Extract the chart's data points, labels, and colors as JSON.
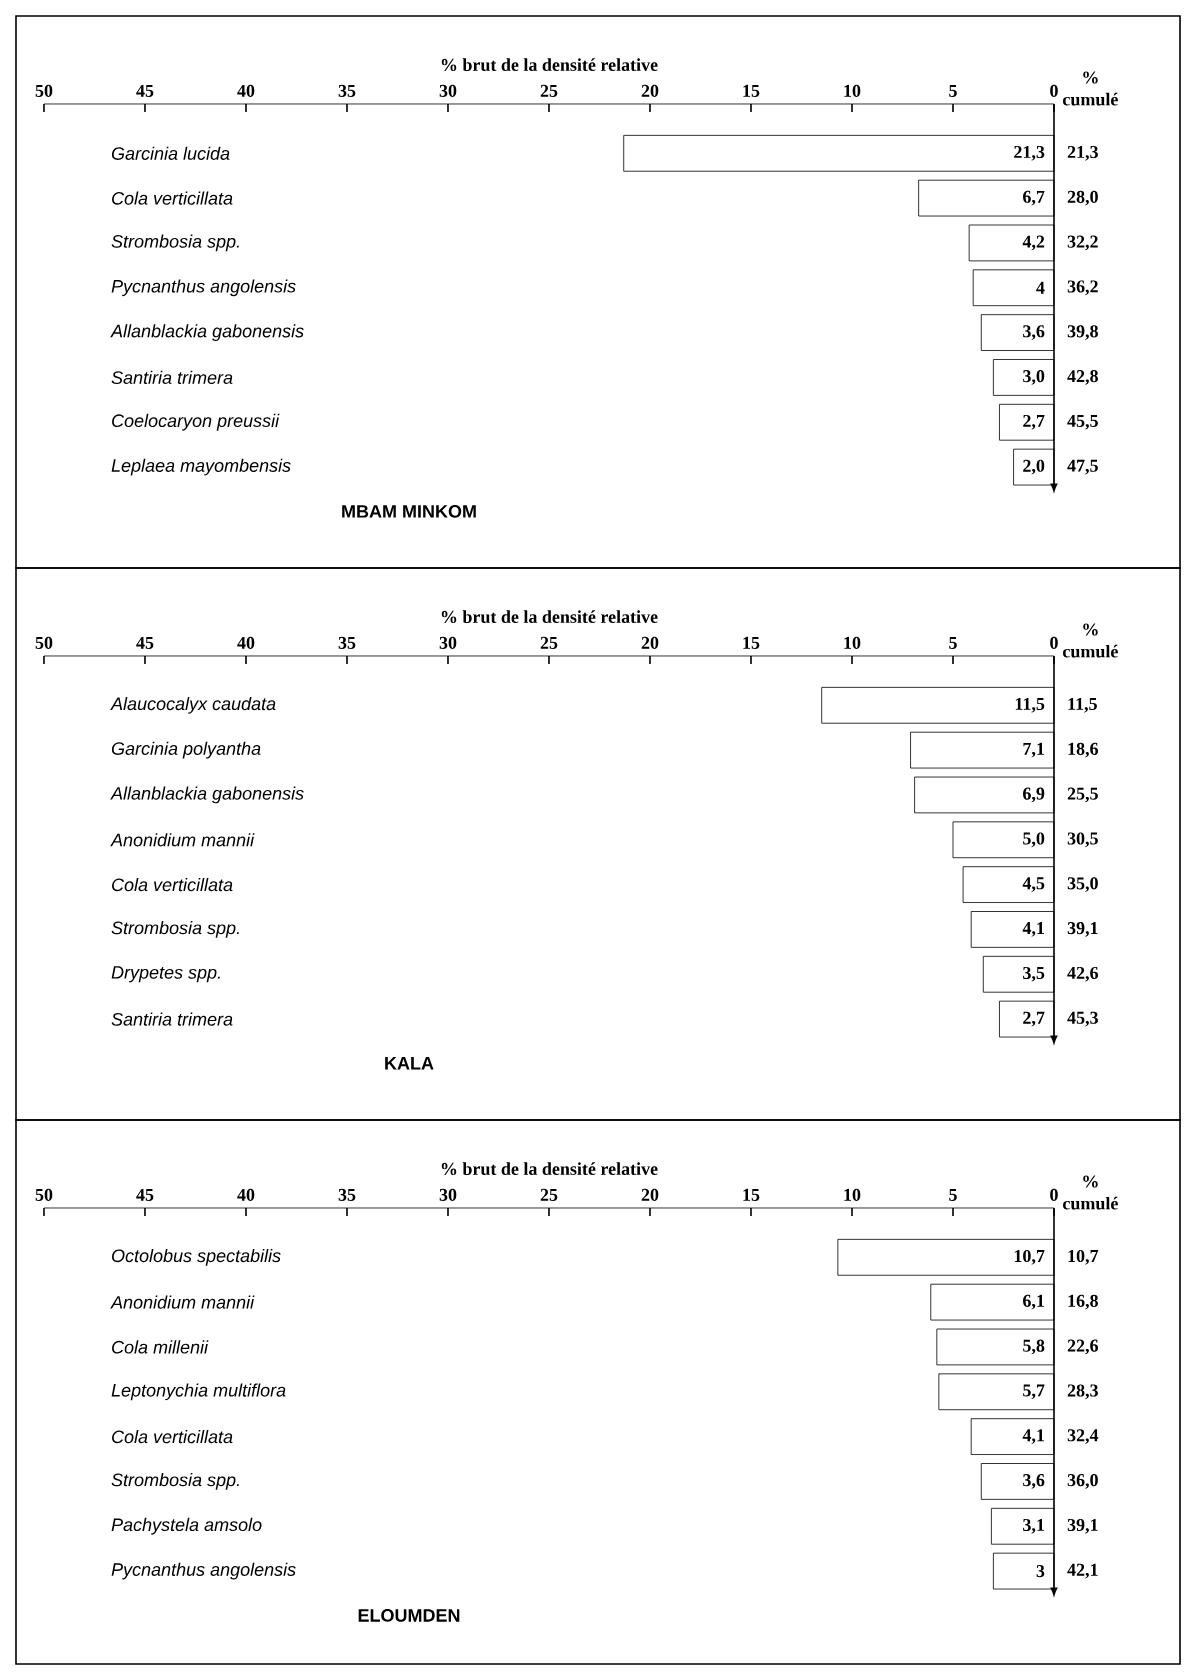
{
  "chart_data": [
    {
      "type": "bar",
      "orientation": "horizontal",
      "title": "MBAM MINKOM",
      "xlabel": "% brut de la densité relative",
      "y2label": "% cumulé",
      "categories": [
        "Garcinia lucida",
        "Cola verticillata",
        "Strombosia spp.",
        "Pycnanthus angolensis",
        "Allanblackia gabonensis",
        "Santiria trimera",
        "Coelocaryon preussii",
        "Leplaea mayombensis"
      ],
      "values": [
        21.3,
        6.7,
        4.2,
        4,
        3.6,
        3.0,
        2.7,
        2.0
      ],
      "value_labels": [
        "21,3",
        "6,7",
        "4,2",
        "4",
        "3,6",
        "3,0",
        "2,7",
        "2,0"
      ],
      "annotations": [
        "21,3",
        "28,0",
        "32,2",
        "36,2",
        "39,8",
        "42,8",
        "45,5",
        "47,5"
      ],
      "color": "#ffffff",
      "xlim": [
        50,
        0
      ],
      "xticks": [
        50,
        45,
        40,
        35,
        30,
        25,
        20,
        15,
        10,
        5,
        0
      ]
    },
    {
      "type": "bar",
      "orientation": "horizontal",
      "title": "KALA",
      "xlabel": "% brut de la densité relative",
      "y2label": "% cumulé",
      "categories": [
        "Alaucocalyx caudata",
        "Garcinia polyantha",
        "Allanblackia gabonensis",
        "Anonidium mannii",
        "Cola verticillata",
        "Strombosia spp.",
        "Drypetes spp.",
        "Santiria trimera"
      ],
      "values": [
        11.5,
        7.1,
        6.9,
        5.0,
        4.5,
        4.1,
        3.5,
        2.7
      ],
      "value_labels": [
        "11,5",
        "7,1",
        "6,9",
        "5,0",
        "4,5",
        "4,1",
        "3,5",
        "2,7"
      ],
      "annotations": [
        "11,5",
        "18,6",
        "25,5",
        "30,5",
        "35,0",
        "39,1",
        "42,6",
        "45,3"
      ],
      "color": "#ffffff",
      "xlim": [
        50,
        0
      ],
      "xticks": [
        50,
        45,
        40,
        35,
        30,
        25,
        20,
        15,
        10,
        5,
        0
      ]
    },
    {
      "type": "bar",
      "orientation": "horizontal",
      "title": "ELOUMDEN",
      "xlabel": "% brut de la densité relative",
      "y2label": "% cumulé",
      "categories": [
        "Octolobus spectabilis",
        "Anonidium mannii",
        "Cola millenii",
        "Leptonychia multiflora",
        "Cola verticillata",
        "Strombosia spp.",
        "Pachystela amsolo",
        "Pycnanthus angolensis"
      ],
      "values": [
        10.7,
        6.1,
        5.8,
        5.7,
        4.1,
        3.6,
        3.1,
        3
      ],
      "value_labels": [
        "10,7",
        "6,1",
        "5,8",
        "5,7",
        "4,1",
        "3,6",
        "3,1",
        "3"
      ],
      "annotations": [
        "10,7",
        "16,8",
        "22,6",
        "28,3",
        "32,4",
        "36,0",
        "39,1",
        "42,1"
      ],
      "color": "#ffffff",
      "xlim": [
        50,
        0
      ],
      "xticks": [
        50,
        45,
        40,
        35,
        30,
        25,
        20,
        15,
        10,
        5,
        0
      ]
    }
  ]
}
